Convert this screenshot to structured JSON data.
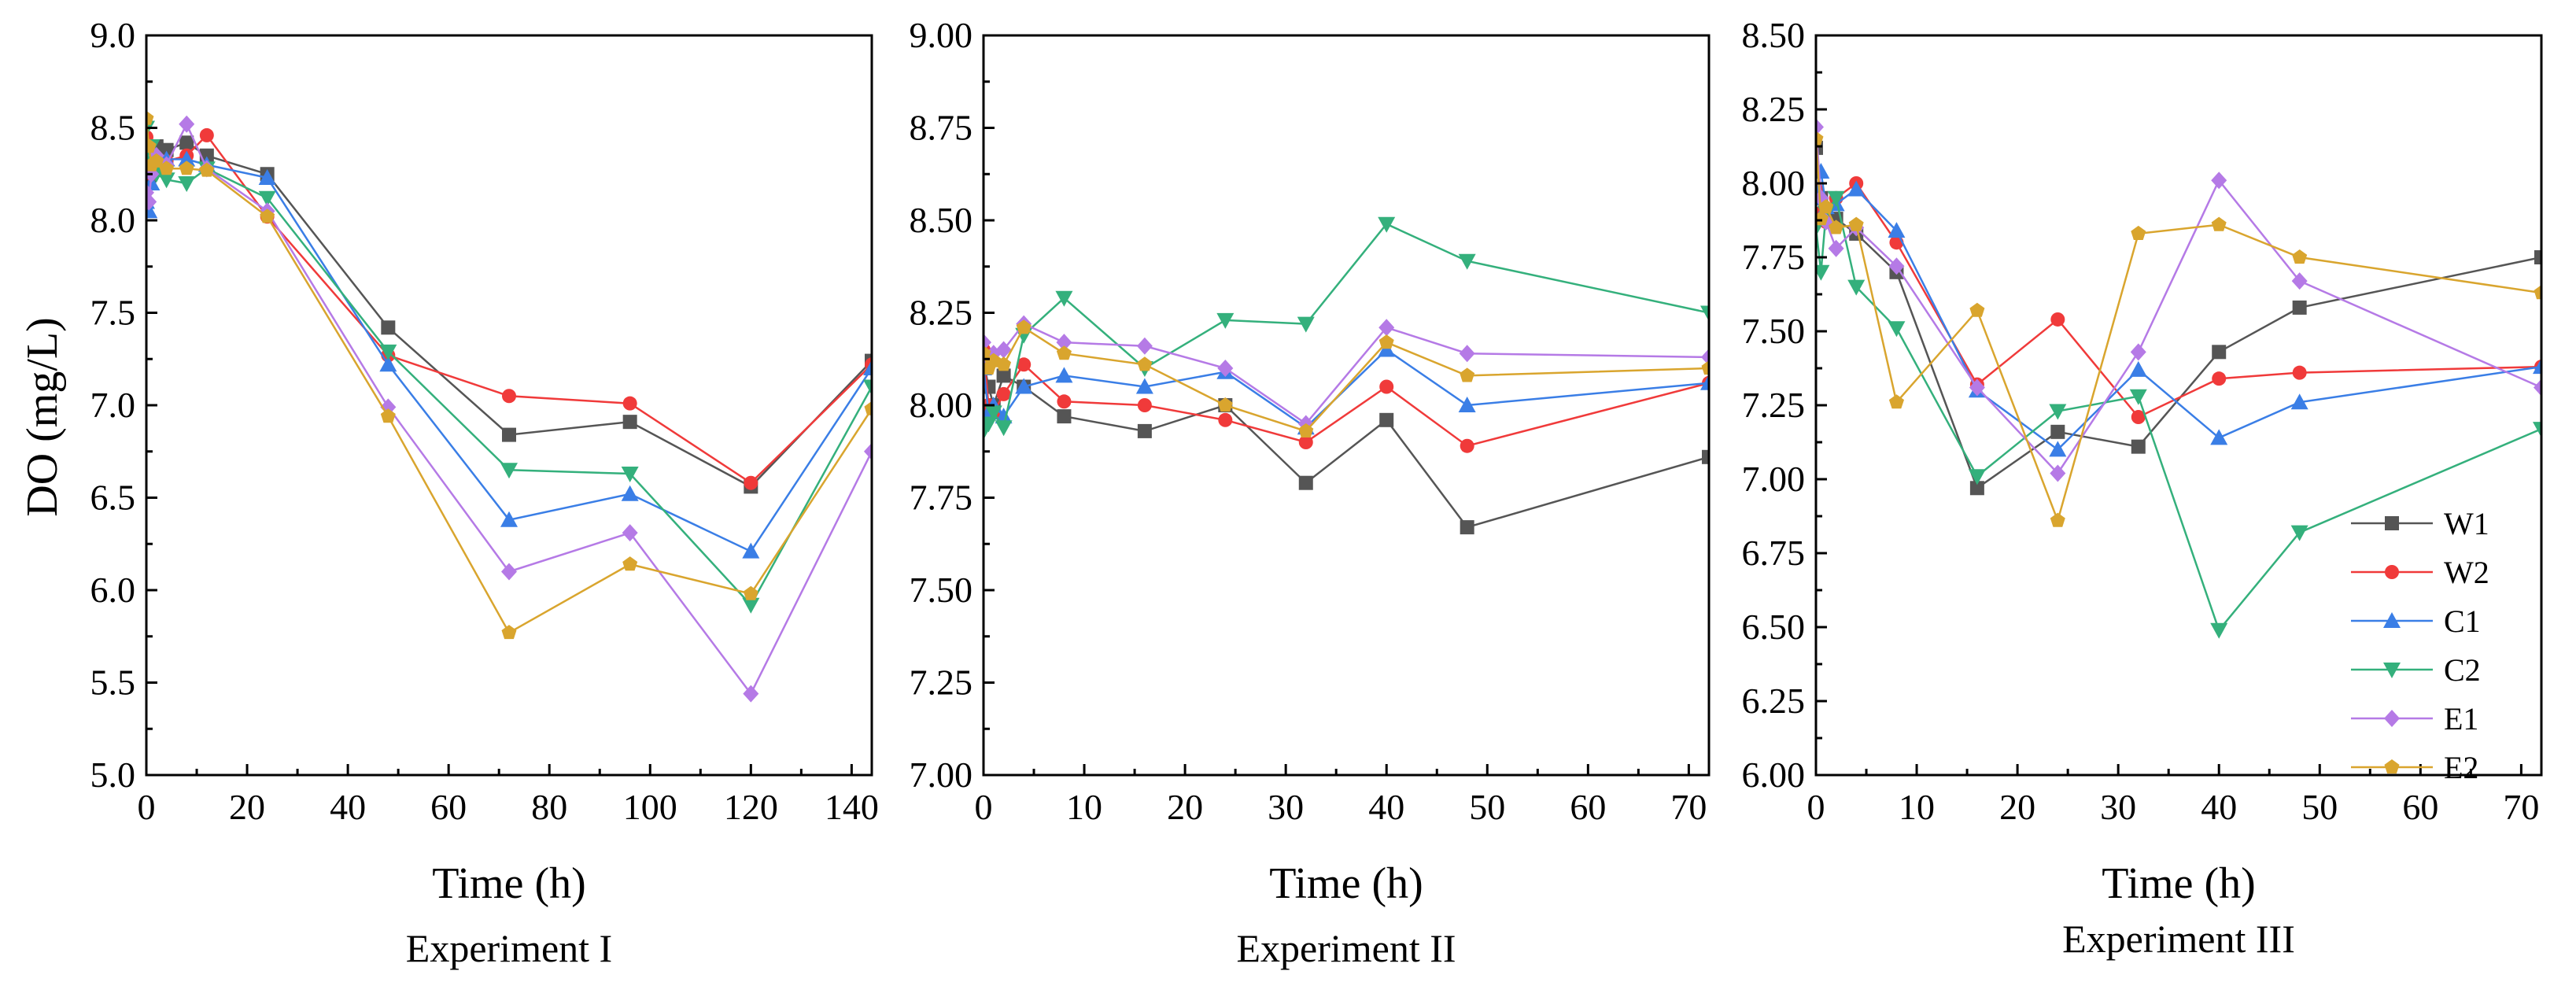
{
  "figure": {
    "ylabel": "DO (mg/L)",
    "legend_position": "bottom-right of Experiment III panel"
  },
  "series_colors": {
    "W1": "#555555",
    "W2": "#f03a3a",
    "C1": "#3a7ee6",
    "C2": "#34b07c",
    "E1": "#b57ae6",
    "E2": "#d9a52e"
  },
  "chart_data": [
    {
      "type": "line",
      "title": "Experiment I",
      "xlabel": "Time (h)",
      "ylabel": "DO (mg/L)",
      "xlim": [
        0,
        144
      ],
      "ylim": [
        5.0,
        9.0
      ],
      "xticks": [
        0,
        20,
        40,
        60,
        80,
        100,
        120,
        140
      ],
      "yticks": [
        5.0,
        5.5,
        6.0,
        6.5,
        7.0,
        7.5,
        8.0,
        8.5,
        9.0
      ],
      "ytick_labels": [
        "5.0",
        "5.5",
        "6.0",
        "6.5",
        "7.0",
        "7.5",
        "8.0",
        "8.5",
        "9.0"
      ],
      "x": [
        0,
        0.5,
        1,
        2,
        4,
        8,
        12,
        24,
        48,
        72,
        96,
        120,
        144
      ],
      "series": [
        {
          "name": "W1",
          "marker": "square",
          "values": [
            8.35,
            8.2,
            8.3,
            8.4,
            8.38,
            8.42,
            8.35,
            8.25,
            7.42,
            6.84,
            6.91,
            6.56,
            7.24
          ]
        },
        {
          "name": "W2",
          "marker": "circle",
          "values": [
            8.45,
            8.3,
            8.25,
            8.3,
            8.32,
            8.35,
            8.46,
            8.02,
            7.27,
            7.05,
            7.01,
            6.58,
            7.22
          ]
        },
        {
          "name": "C1",
          "marker": "triangle-up",
          "values": [
            8.1,
            8.05,
            8.2,
            8.35,
            8.33,
            8.33,
            8.3,
            8.23,
            7.22,
            6.38,
            6.52,
            6.21,
            7.2
          ]
        },
        {
          "name": "C2",
          "marker": "triangle-down",
          "values": [
            8.5,
            8.3,
            8.4,
            8.25,
            8.22,
            8.2,
            8.28,
            8.12,
            7.29,
            6.65,
            6.63,
            5.92,
            7.1
          ]
        },
        {
          "name": "E1",
          "marker": "diamond",
          "values": [
            8.15,
            8.1,
            8.25,
            8.35,
            8.3,
            8.52,
            8.28,
            8.05,
            6.99,
            6.1,
            6.31,
            5.44,
            6.75
          ]
        },
        {
          "name": "E2",
          "marker": "pentagon",
          "values": [
            8.55,
            8.4,
            8.3,
            8.32,
            8.28,
            8.28,
            8.27,
            8.02,
            6.94,
            5.77,
            6.14,
            5.98,
            6.98
          ]
        }
      ]
    },
    {
      "type": "line",
      "title": "Experiment II",
      "xlabel": "Time (h)",
      "ylabel": "",
      "xlim": [
        0,
        72
      ],
      "ylim": [
        7.0,
        9.0
      ],
      "xticks": [
        0,
        10,
        20,
        30,
        40,
        50,
        60,
        70
      ],
      "yticks": [
        7.0,
        7.25,
        7.5,
        7.75,
        8.0,
        8.25,
        8.5,
        8.75,
        9.0
      ],
      "ytick_labels": [
        "7.00",
        "7.25",
        "7.50",
        "7.75",
        "8.00",
        "8.25",
        "8.50",
        "8.75",
        "9.00"
      ],
      "x": [
        0,
        0.5,
        1,
        2,
        4,
        8,
        16,
        24,
        32,
        40,
        48,
        72
      ],
      "series": [
        {
          "name": "W1",
          "marker": "square",
          "values": [
            8.12,
            8.05,
            8.0,
            8.08,
            8.05,
            7.97,
            7.93,
            8.0,
            7.79,
            7.96,
            7.67,
            7.86
          ]
        },
        {
          "name": "W2",
          "marker": "circle",
          "values": [
            8.15,
            8.0,
            7.98,
            8.03,
            8.11,
            8.01,
            8.0,
            7.96,
            7.9,
            8.05,
            7.89,
            8.06
          ]
        },
        {
          "name": "C1",
          "marker": "triangle-up",
          "values": [
            8.1,
            7.98,
            8.0,
            7.97,
            8.05,
            8.08,
            8.05,
            8.09,
            7.94,
            8.15,
            8.0,
            8.06
          ]
        },
        {
          "name": "C2",
          "marker": "triangle-down",
          "values": [
            7.93,
            7.95,
            7.98,
            7.94,
            8.19,
            8.29,
            8.1,
            8.23,
            8.22,
            8.49,
            8.39,
            8.25
          ]
        },
        {
          "name": "E1",
          "marker": "diamond",
          "values": [
            8.17,
            8.12,
            8.14,
            8.15,
            8.22,
            8.17,
            8.16,
            8.1,
            7.95,
            8.21,
            8.14,
            8.13
          ]
        },
        {
          "name": "E2",
          "marker": "pentagon",
          "values": [
            8.14,
            8.1,
            8.12,
            8.11,
            8.21,
            8.14,
            8.11,
            8.0,
            7.93,
            8.17,
            8.08,
            8.1
          ]
        }
      ]
    },
    {
      "type": "line",
      "title": "Experiment III",
      "xlabel": "Time (h)",
      "ylabel": "",
      "xlim": [
        0,
        72
      ],
      "ylim": [
        6.0,
        8.5
      ],
      "xticks": [
        0,
        10,
        20,
        30,
        40,
        50,
        60,
        70
      ],
      "yticks": [
        6.0,
        6.25,
        6.5,
        6.75,
        7.0,
        7.25,
        7.5,
        7.75,
        8.0,
        8.25,
        8.5
      ],
      "ytick_labels": [
        "6.00",
        "6.25",
        "6.50",
        "6.75",
        "7.00",
        "7.25",
        "7.50",
        "7.75",
        "8.00",
        "8.25",
        "8.50"
      ],
      "x": [
        0,
        0.5,
        1,
        2,
        4,
        8,
        16,
        24,
        32,
        40,
        48,
        72
      ],
      "series": [
        {
          "name": "W1",
          "marker": "square",
          "values": [
            8.12,
            7.95,
            7.9,
            7.88,
            7.83,
            7.7,
            6.97,
            7.16,
            7.11,
            7.43,
            7.58,
            7.75
          ]
        },
        {
          "name": "W2",
          "marker": "circle",
          "values": [
            7.98,
            7.9,
            7.87,
            7.95,
            8.0,
            7.8,
            7.32,
            7.54,
            7.21,
            7.34,
            7.36,
            7.38
          ]
        },
        {
          "name": "C1",
          "marker": "triangle-up",
          "values": [
            7.95,
            8.04,
            7.92,
            7.93,
            7.98,
            7.84,
            7.3,
            7.1,
            7.37,
            7.14,
            7.26,
            7.38
          ]
        },
        {
          "name": "C2",
          "marker": "triangle-down",
          "values": [
            7.85,
            7.7,
            7.9,
            7.95,
            7.65,
            7.51,
            7.01,
            7.23,
            7.28,
            6.49,
            6.82,
            7.17
          ]
        },
        {
          "name": "E1",
          "marker": "diamond",
          "values": [
            8.19,
            7.95,
            7.87,
            7.78,
            7.85,
            7.72,
            7.31,
            7.02,
            7.43,
            8.01,
            7.67,
            7.31
          ]
        },
        {
          "name": "E2",
          "marker": "pentagon",
          "values": [
            8.15,
            7.88,
            7.92,
            7.85,
            7.86,
            7.26,
            7.57,
            6.86,
            7.83,
            7.86,
            7.75,
            7.63
          ]
        }
      ]
    }
  ]
}
